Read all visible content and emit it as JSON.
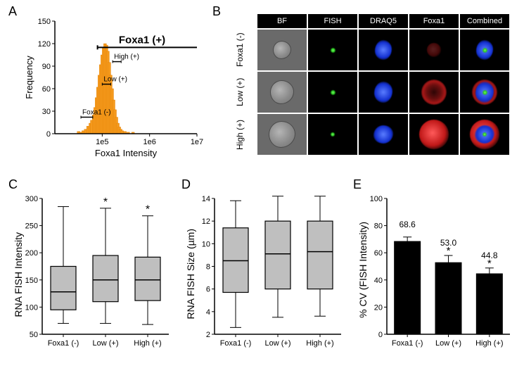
{
  "labels": {
    "A": "A",
    "B": "B",
    "C": "C",
    "D": "D",
    "E": "E"
  },
  "colors": {
    "hist_fill": "#f59a1d",
    "hist_stroke": "#e07e00",
    "axis": "#000000",
    "box_fill": "#bfbfbf",
    "box_stroke": "#000000",
    "bar_fill": "#000000",
    "bg": "#ffffff"
  },
  "panelA": {
    "xlabel": "Foxa1 Intensity",
    "ylabel": "Frequency",
    "gate_label": "Foxa1 (+)",
    "sub_labels": [
      "High (+)",
      "Low (+)",
      "Foxa1 (-)"
    ],
    "xlim": [
      4,
      7
    ],
    "xticks": [
      {
        "v": 5,
        "l": "1e5"
      },
      {
        "v": 6,
        "l": "1e6"
      },
      {
        "v": 7,
        "l": "1e7"
      }
    ],
    "ylim": [
      0,
      150
    ],
    "yticks": [
      0,
      30,
      60,
      90,
      120,
      150
    ],
    "bins": [
      {
        "x": 4.5,
        "h": 3
      },
      {
        "x": 4.55,
        "h": 2
      },
      {
        "x": 4.6,
        "h": 4
      },
      {
        "x": 4.65,
        "h": 6
      },
      {
        "x": 4.7,
        "h": 10
      },
      {
        "x": 4.75,
        "h": 14
      },
      {
        "x": 4.78,
        "h": 18
      },
      {
        "x": 4.82,
        "h": 25
      },
      {
        "x": 4.85,
        "h": 35
      },
      {
        "x": 4.88,
        "h": 48
      },
      {
        "x": 4.91,
        "h": 62
      },
      {
        "x": 4.94,
        "h": 78
      },
      {
        "x": 4.97,
        "h": 92
      },
      {
        "x": 5.0,
        "h": 105
      },
      {
        "x": 5.03,
        "h": 115
      },
      {
        "x": 5.06,
        "h": 120
      },
      {
        "x": 5.09,
        "h": 118
      },
      {
        "x": 5.12,
        "h": 110
      },
      {
        "x": 5.15,
        "h": 95
      },
      {
        "x": 5.18,
        "h": 78
      },
      {
        "x": 5.21,
        "h": 60
      },
      {
        "x": 5.24,
        "h": 45
      },
      {
        "x": 5.27,
        "h": 32
      },
      {
        "x": 5.3,
        "h": 22
      },
      {
        "x": 5.33,
        "h": 14
      },
      {
        "x": 5.36,
        "h": 9
      },
      {
        "x": 5.39,
        "h": 6
      },
      {
        "x": 5.42,
        "h": 4
      },
      {
        "x": 5.48,
        "h": 3
      },
      {
        "x": 5.55,
        "h": 2
      },
      {
        "x": 5.65,
        "h": 2
      }
    ],
    "gate_x0": 4.9,
    "gate_x1": 7.0,
    "gate_y": 115,
    "markers": [
      {
        "label": "High (+)",
        "x0": 5.22,
        "x1": 5.4,
        "y": 96
      },
      {
        "label": "Low (+)",
        "x0": 5.0,
        "x1": 5.18,
        "y": 66
      },
      {
        "label": "Foxa1 (-)",
        "x0": 4.55,
        "x1": 4.8,
        "y": 22
      }
    ]
  },
  "panelB": {
    "col_heads": [
      "BF",
      "FISH",
      "DRAQ5",
      "Foxa1",
      "Combined"
    ],
    "row_heads": [
      "Foxa1 (-)",
      "Low (+)",
      "High (+)"
    ],
    "row_styles": [
      {
        "bfSize": 26,
        "greenSize": 7,
        "blueW": 24,
        "blueH": 28,
        "redSize": 20,
        "redOpacity": 0.35,
        "ring": false
      },
      {
        "bfSize": 34,
        "greenSize": 7,
        "blueW": 26,
        "blueH": 30,
        "redSize": 36,
        "redOpacity": 0.85,
        "ring": true
      },
      {
        "bfSize": 38,
        "greenSize": 6,
        "blueW": 28,
        "blueH": 26,
        "redSize": 42,
        "redOpacity": 1.0,
        "ring": false
      }
    ]
  },
  "boxplots": {
    "groups": [
      "Foxa1 (-)",
      "Low (+)",
      "High (+)"
    ],
    "sig": [
      "",
      "*",
      "*"
    ],
    "C": {
      "ylabel": "RNA FISH Intensity",
      "ylim": [
        50,
        300
      ],
      "yticks": [
        50,
        100,
        150,
        200,
        250,
        300
      ],
      "data": [
        {
          "min": 70,
          "q1": 95,
          "med": 128,
          "q3": 175,
          "max": 285
        },
        {
          "min": 70,
          "q1": 110,
          "med": 150,
          "q3": 195,
          "max": 282
        },
        {
          "min": 68,
          "q1": 112,
          "med": 150,
          "q3": 192,
          "max": 268
        }
      ]
    },
    "D": {
      "ylabel": "RNA FISH Size (µm)",
      "ylim": [
        2,
        14
      ],
      "yticks": [
        2,
        4,
        6,
        8,
        10,
        12,
        14
      ],
      "data": [
        {
          "min": 2.6,
          "q1": 5.7,
          "med": 8.5,
          "q3": 11.4,
          "max": 13.8
        },
        {
          "min": 3.5,
          "q1": 6.0,
          "med": 9.1,
          "q3": 12.0,
          "max": 14.2
        },
        {
          "min": 3.6,
          "q1": 6.0,
          "med": 9.3,
          "q3": 12.0,
          "max": 14.2
        }
      ]
    }
  },
  "panelE": {
    "ylabel": "% CV (FISH Intensity)",
    "ylim": [
      0,
      100
    ],
    "yticks": [
      0,
      20,
      40,
      60,
      80,
      100
    ],
    "groups": [
      "Foxa1 (-)",
      "Low (+)",
      "High (+)"
    ],
    "values": [
      68.6,
      53.0,
      44.8
    ],
    "value_labels": [
      "68.6",
      "53.0",
      "44.8"
    ],
    "err": [
      3,
      5,
      4
    ],
    "sig": [
      "",
      "*",
      "*"
    ]
  },
  "fonts": {
    "label": 18,
    "axis": 13,
    "tick": 11,
    "head": 11
  }
}
